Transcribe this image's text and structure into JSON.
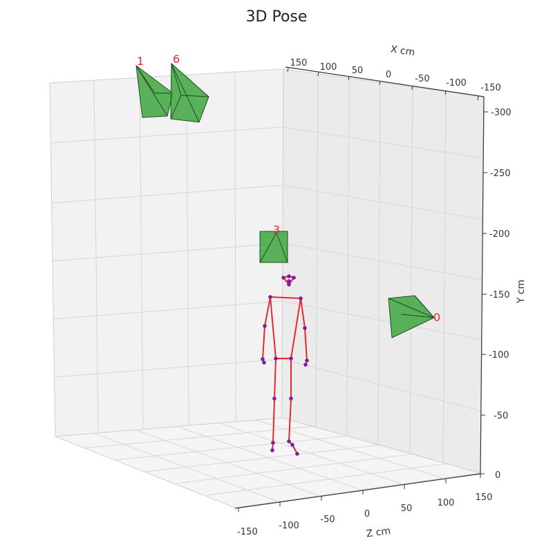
{
  "chart_data": {
    "type": "scatter3d",
    "title": "3D Pose",
    "axes": {
      "x": {
        "label": "X cm",
        "ticks": [
          150,
          100,
          50,
          0,
          -50,
          -100,
          -150
        ]
      },
      "y": {
        "label": "Y cm",
        "ticks": [
          0,
          -50,
          -100,
          -150,
          -200,
          -250,
          -300
        ]
      },
      "z": {
        "label": "Z cm",
        "ticks": [
          -150,
          -100,
          -50,
          0,
          50,
          100,
          150
        ]
      }
    },
    "grid": true,
    "cameras": [
      {
        "label": "1"
      },
      {
        "label": "6"
      },
      {
        "label": "3"
      },
      {
        "label": "0"
      }
    ],
    "skeleton": {
      "line_color": "#e8262b",
      "joint_color": "#7b1fa2"
    },
    "colors": {
      "camera_fill": "#3ea63e",
      "pane": "#f2f2f2",
      "grid": "#d9d9d9"
    }
  }
}
